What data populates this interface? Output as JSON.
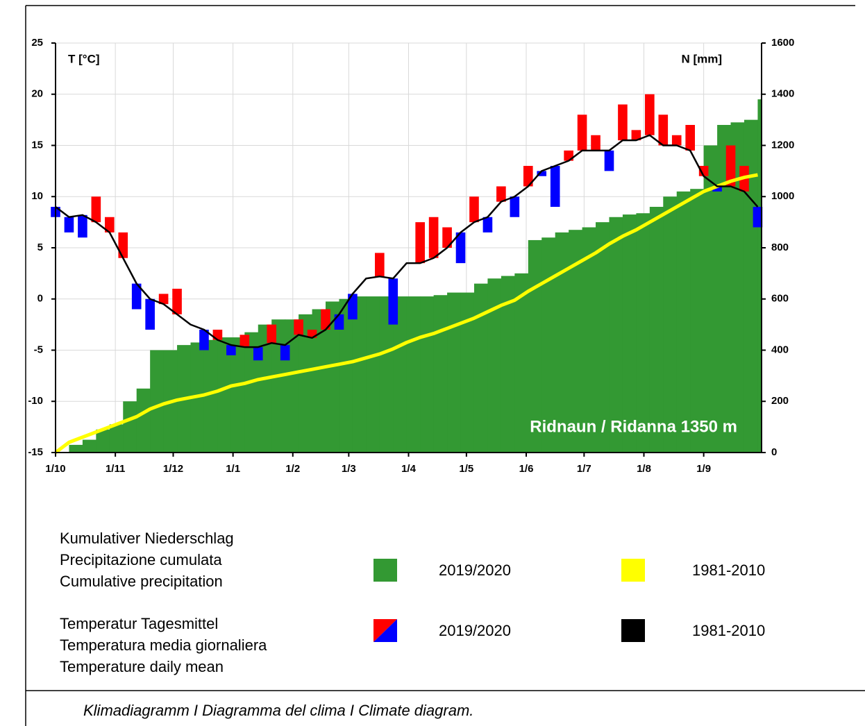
{
  "chart_data": {
    "type": "climate",
    "y_title": "T [°C]",
    "y2_title": "N [mm]",
    "annotation": "Ridnaun / Ridanna 1350 m",
    "xlim": [
      0,
      366
    ],
    "xticks": [
      {
        "value": 0,
        "label": "1/10"
      },
      {
        "value": 31,
        "label": "1/11"
      },
      {
        "value": 61,
        "label": "1/12"
      },
      {
        "value": 92,
        "label": "1/1"
      },
      {
        "value": 123,
        "label": "1/2"
      },
      {
        "value": 152,
        "label": "1/3"
      },
      {
        "value": 183,
        "label": "1/4"
      },
      {
        "value": 213,
        "label": "1/5"
      },
      {
        "value": 244,
        "label": "1/6"
      },
      {
        "value": 274,
        "label": "1/7"
      },
      {
        "value": 305,
        "label": "1/8"
      },
      {
        "value": 336,
        "label": "1/9"
      }
    ],
    "ylim": [
      -15,
      25
    ],
    "yticks": [
      -15,
      -10,
      -5,
      0,
      5,
      10,
      15,
      20,
      25
    ],
    "y2lim": [
      0,
      1600
    ],
    "y2ticks": [
      0,
      200,
      400,
      600,
      800,
      1000,
      1200,
      1400,
      1600
    ],
    "grid": true,
    "x": [
      0,
      7,
      14,
      21,
      28,
      35,
      42,
      49,
      56,
      63,
      70,
      77,
      84,
      91,
      98,
      105,
      112,
      119,
      126,
      133,
      140,
      147,
      154,
      161,
      168,
      175,
      182,
      189,
      196,
      203,
      210,
      217,
      224,
      231,
      238,
      245,
      252,
      259,
      266,
      273,
      280,
      287,
      294,
      301,
      308,
      315,
      322,
      329,
      336,
      343,
      350,
      357,
      364
    ],
    "series": [
      {
        "name": "2019/2020",
        "kind": "precipitation",
        "axis": "y2",
        "color": "#339933",
        "values": [
          0,
          30,
          50,
          90,
          110,
          200,
          250,
          400,
          400,
          420,
          430,
          440,
          450,
          450,
          470,
          500,
          520,
          520,
          540,
          560,
          590,
          600,
          610,
          610,
          610,
          610,
          610,
          610,
          615,
          625,
          625,
          660,
          680,
          690,
          700,
          830,
          840,
          860,
          870,
          880,
          900,
          920,
          930,
          935,
          960,
          1000,
          1020,
          1030,
          1200,
          1280,
          1290,
          1300,
          1380
        ]
      },
      {
        "name": "1981-2010",
        "kind": "precipitation",
        "axis": "y2",
        "color": "#ffff00",
        "values": [
          0,
          40,
          60,
          80,
          100,
          120,
          140,
          170,
          190,
          205,
          215,
          225,
          240,
          260,
          270,
          285,
          295,
          305,
          315,
          325,
          335,
          345,
          355,
          370,
          385,
          405,
          430,
          450,
          465,
          485,
          505,
          525,
          550,
          575,
          595,
          630,
          660,
          690,
          720,
          750,
          780,
          815,
          845,
          870,
          900,
          930,
          960,
          990,
          1020,
          1040,
          1060,
          1075,
          1085
        ]
      },
      {
        "name": "2019/2020",
        "kind": "temperature",
        "color_above": "#ff0000",
        "color_below": "#0000ff",
        "values": [
          8,
          6.5,
          6,
          10,
          8,
          6.5,
          -1,
          -3,
          0.5,
          1,
          -2.5,
          -5,
          -3,
          -5.5,
          -3.5,
          -6,
          -2.5,
          -6,
          -2,
          -3,
          -1,
          -3,
          -2,
          2,
          4.5,
          -2.5,
          3.5,
          7.5,
          8,
          7,
          3.5,
          10,
          6.5,
          11,
          8,
          13,
          12,
          9,
          14.5,
          18,
          16,
          12.5,
          19,
          16.5,
          20,
          18,
          16,
          17,
          13,
          10.5,
          15,
          13,
          7
        ]
      },
      {
        "name": "1981-2010",
        "kind": "temperature",
        "color": "#000000",
        "values": [
          9,
          8,
          8.2,
          7.5,
          6.5,
          4,
          1.5,
          0,
          -0.5,
          -1.5,
          -2.5,
          -3,
          -4,
          -4.5,
          -4.7,
          -4.7,
          -4.3,
          -4.5,
          -3.5,
          -3.8,
          -3,
          -1.5,
          0.5,
          2,
          2.2,
          2,
          3.5,
          3.5,
          4,
          5,
          6.5,
          7.5,
          8,
          9.5,
          10,
          11,
          12.5,
          13,
          13.5,
          14.5,
          14.5,
          14.5,
          15.5,
          15.5,
          16,
          15,
          15,
          14.5,
          12,
          11,
          11,
          10.5,
          9
        ]
      }
    ],
    "legend_groups": [
      [
        "Kumulativer Niederschlag",
        "Precipitazione cumulata",
        "Cumulative precipitation"
      ],
      [
        "Temperatur Tagesmittel",
        "Temperatura media giornaliera",
        "Temperature daily mean"
      ]
    ]
  },
  "caption": "Klimadiagramm I Diagramma del clima I Climate diagram."
}
